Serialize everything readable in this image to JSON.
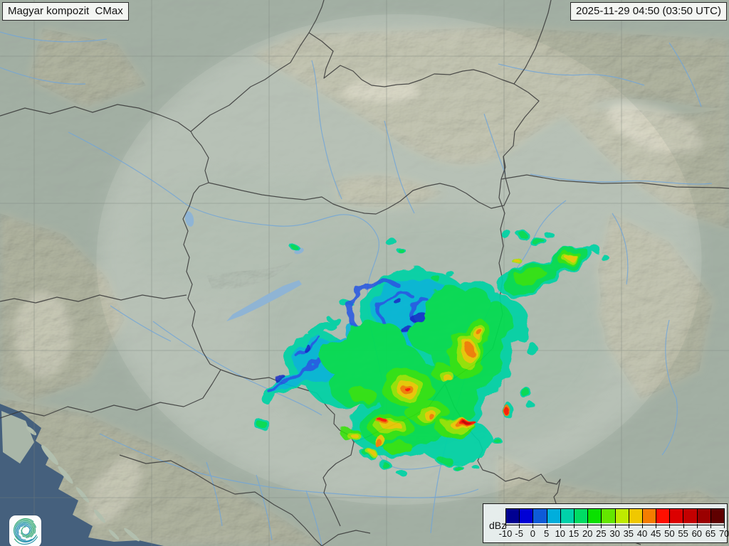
{
  "header": {
    "product_label": "Magyar kompozit  CMax",
    "timestamp": "2025-11-29 04:50 (03:50 UTC)"
  },
  "legend": {
    "unit_label": "dBz",
    "tick_labels": [
      "-10",
      "-5",
      "0",
      "5",
      "10",
      "15",
      "20",
      "25",
      "30",
      "35",
      "40",
      "45",
      "50",
      "55",
      "60",
      "65",
      "70"
    ],
    "colors": [
      "#000091",
      "#0000D6",
      "#0E5BD8",
      "#00AEDC",
      "#00D2AA",
      "#00DC64",
      "#0AE100",
      "#64E600",
      "#BEEB00",
      "#F0C800",
      "#F57D00",
      "#FF0F00",
      "#DC0000",
      "#C30000",
      "#9B0000",
      "#5F0000"
    ]
  },
  "branding": {
    "logo": "hungaromet-spiral-logo"
  },
  "map": {
    "colors": {
      "land": "#AEB9AE",
      "coverage_highlight": "#EDF2E8",
      "sea": "#45607D",
      "lake": "#8FB4D4",
      "river": "#74A6D6",
      "border": "#3A3A3A",
      "terrain": "#CDC3A6",
      "echo_cyan": "#00B4DC",
      "echo_teal": "#00D2A5",
      "echo_green": "#00DC50",
      "echo_yellow": "#F0C800",
      "echo_orange": "#F57800",
      "echo_red": "#FF1400"
    }
  }
}
